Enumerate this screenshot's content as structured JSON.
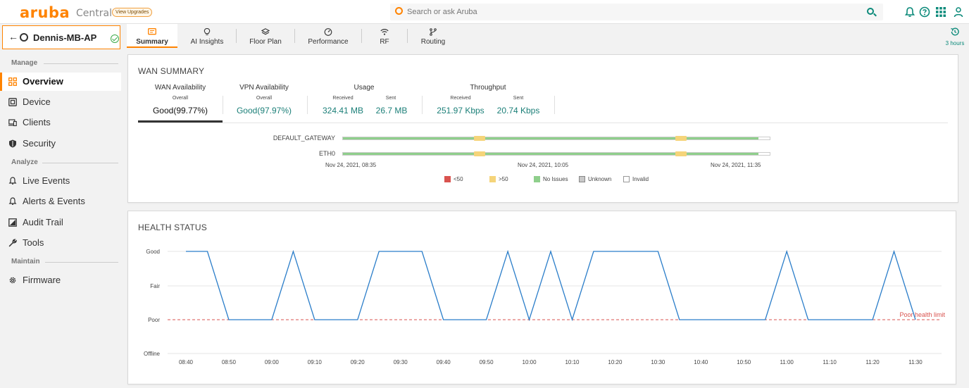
{
  "brand": {
    "logo": "aruba",
    "product": "Central",
    "upgrade": "View Upgrades",
    "color": "#ff8300"
  },
  "search": {
    "placeholder": "Search or ask Aruba"
  },
  "device": {
    "name": "Dennis-MB-AP",
    "status": "online"
  },
  "sidebar": {
    "sections": {
      "manage": "Manage",
      "analyze": "Analyze",
      "maintain": "Maintain"
    },
    "items": [
      {
        "label": "Overview",
        "icon": "overview-icon",
        "active": true
      },
      {
        "label": "Device",
        "icon": "device-icon"
      },
      {
        "label": "Clients",
        "icon": "clients-icon"
      },
      {
        "label": "Security",
        "icon": "shield-icon"
      },
      {
        "label": "Live Events",
        "icon": "bell-icon"
      },
      {
        "label": "Alerts & Events",
        "icon": "bell-icon"
      },
      {
        "label": "Audit Trail",
        "icon": "audit-icon"
      },
      {
        "label": "Tools",
        "icon": "wrench-icon"
      },
      {
        "label": "Firmware",
        "icon": "gear-icon"
      }
    ]
  },
  "tabs": [
    {
      "label": "Summary",
      "icon": "summary-icon",
      "active": true
    },
    {
      "label": "AI Insights",
      "icon": "bulb-icon"
    },
    {
      "label": "Floor Plan",
      "icon": "layers-icon"
    },
    {
      "label": "Performance",
      "icon": "gauge-icon"
    },
    {
      "label": "RF",
      "icon": "wifi-icon"
    },
    {
      "label": "Routing",
      "icon": "routing-icon"
    }
  ],
  "time_range": {
    "label": "3 hours",
    "icon": "history-icon"
  },
  "wan_summary": {
    "title": "WAN SUMMARY",
    "wan_availability": {
      "label": "WAN Availability",
      "sub": "Overall",
      "value": "Good(99.77%)"
    },
    "vpn_availability": {
      "label": "VPN Availability",
      "sub": "Overall",
      "value": "Good(97.97%)"
    },
    "usage": {
      "label": "Usage",
      "received_label": "Received",
      "sent_label": "Sent",
      "received": "324.41 MB",
      "sent": "26.7 MB"
    },
    "throughput": {
      "label": "Throughput",
      "received_label": "Received",
      "sent_label": "Sent",
      "received": "251.97 Kbps",
      "sent": "20.74 Kbps"
    },
    "uplinks": [
      {
        "name": "DEFAULT_GATEWAY"
      },
      {
        "name": "ETH0"
      }
    ],
    "timeline": [
      "Nov 24, 2021, 08:35",
      "Nov 24, 2021, 10:05",
      "Nov 24, 2021, 11:35"
    ],
    "legend": [
      {
        "label": "<50",
        "color": "#d9534f"
      },
      {
        "label": ">50",
        "color": "#f5d47a"
      },
      {
        "label": "No Issues",
        "color": "#8fcf8c"
      },
      {
        "label": "Unknown",
        "color": "#c8c8c8"
      },
      {
        "label": "Invalid",
        "color": "#ffffff"
      }
    ]
  },
  "health_status": {
    "title": "HEALTH STATUS",
    "chart_data": {
      "type": "line",
      "y_categories": [
        "Offline",
        "Poor",
        "Fair",
        "Good"
      ],
      "x_ticks": [
        "08:40",
        "08:50",
        "09:00",
        "09:10",
        "09:20",
        "09:30",
        "09:40",
        "09:50",
        "10:00",
        "10:10",
        "10:20",
        "10:30",
        "10:40",
        "10:50",
        "11:00",
        "11:10",
        "11:20",
        "11:30"
      ],
      "series": [
        {
          "color": "#2a7dc9",
          "points": [
            [
              "08:40",
              "Good"
            ],
            [
              "08:45",
              "Good"
            ],
            [
              "08:50",
              "Poor"
            ],
            [
              "09:00",
              "Poor"
            ],
            [
              "09:05",
              "Good"
            ],
            [
              "09:10",
              "Poor"
            ],
            [
              "09:20",
              "Poor"
            ],
            [
              "09:25",
              "Good"
            ],
            [
              "09:35",
              "Good"
            ],
            [
              "09:40",
              "Poor"
            ],
            [
              "09:50",
              "Poor"
            ],
            [
              "09:55",
              "Good"
            ],
            [
              "10:00",
              "Poor"
            ],
            [
              "10:05",
              "Good"
            ],
            [
              "10:10",
              "Poor"
            ],
            [
              "10:15",
              "Good"
            ],
            [
              "10:30",
              "Good"
            ],
            [
              "10:35",
              "Poor"
            ],
            [
              "10:55",
              "Poor"
            ],
            [
              "11:00",
              "Good"
            ],
            [
              "11:05",
              "Poor"
            ],
            [
              "11:20",
              "Poor"
            ],
            [
              "11:25",
              "Good"
            ],
            [
              "11:30",
              "Poor"
            ]
          ]
        }
      ],
      "threshold": {
        "label": "Poor health limit",
        "value": "Poor",
        "color": "#d9534f"
      },
      "grid": true
    }
  }
}
